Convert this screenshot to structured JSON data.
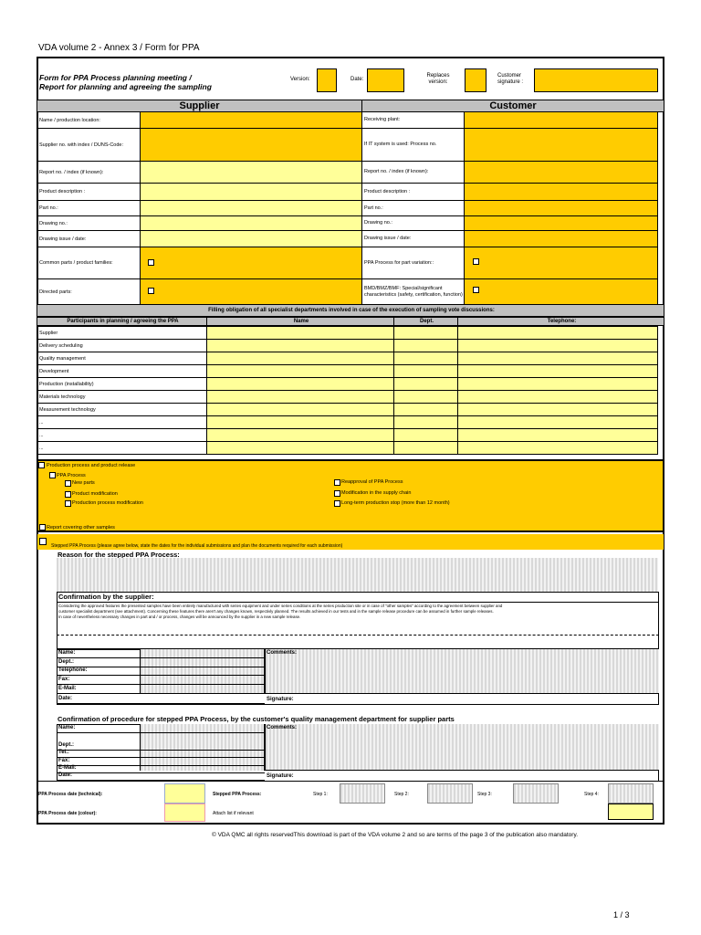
{
  "doc_title": "VDA volume 2 - Annex 3 / Form for PPA",
  "header": {
    "title_line1": "Form for PPA Process planning meeting /",
    "title_line2": "Report for planning and agreeing the sampling",
    "version": "Version:",
    "date": "Date:",
    "replaces": "Replaces version:",
    "customer_signature": "Customer signature :"
  },
  "supplier_heading": "Supplier",
  "customer_heading": "Customer",
  "supplier_fields": [
    "Name / production location:",
    "Supplier no. with index / DUNS-Code:",
    "Report no. / index (if known):",
    "Product description :",
    "Part no.:",
    "Drawing no.:",
    "Drawing issue / date:",
    "Common parts / product families:",
    "Directed parts:"
  ],
  "customer_fields": [
    "Receiving plant:",
    "If IT system is used: Process no.",
    "Report no. / index (if known):",
    "Product description :",
    "Part no.:",
    "Drawing no.:",
    "Drawing issue / date:",
    "PPA Process for part variation::",
    "BMD/BMZ/BMF: Special/significant characteristics (safety, certification, function)"
  ],
  "obligation_heading": "Filling obligation of all specialist departments involved in case of the execution of sampling vote discussions:",
  "participants_headers": [
    "Participants in planning / agreeing the PPA",
    "Name",
    "Dept.",
    "Telephone:"
  ],
  "participants": [
    "Supplier",
    "Delivery scheduling",
    "Quality management",
    "Development",
    "Production (installability)",
    "Materials technology",
    "Measurement technology",
    "...",
    "...",
    "..."
  ],
  "release": {
    "main": "Production process and product release",
    "ppa": "PPA Process",
    "new_parts": "New parts",
    "product_mod": "Product modification",
    "process_mod": "Production process modification",
    "reapproval": "Reapproval of PPA Process",
    "supply_chain": "Modification in the supply chain",
    "stop": "Long-term production stop (more than 12 month)",
    "other": "Report covering other samples"
  },
  "stepped": {
    "label": "Stepped PPA Process (please agree below, state the dates for the individual submissions and plan the documents required for each submission)",
    "reason": "Reason for the stepped PPA Process:"
  },
  "confirmation": {
    "title": "Confirmation by the supplier:",
    "text1": "Considering the approved features the presented samples have been entirely manufactured  with series equipment  and under series conditions at the series production site or in case of \"other samples\" according to the agreement between supplier and",
    "text2": "customer specialist department (see attachment). Concerning these features there aren't any changes known, respectivly planned. The results achieved in our tests and in the sample release procedure can be assumed in further sample releases.",
    "text3": "In case of nevertheless necessary changes in part and / or process, changes will be announced by the supplier in a new sample release.",
    "labels": [
      "Name:",
      "Dept.:",
      "Telephone:",
      "Fax:",
      "E-Mail:",
      "Date:"
    ],
    "comments": "Comments:",
    "signature": "Signature:"
  },
  "procedure": {
    "title": "Confirmation of procedure for stepped PPA Process, by the customer's quality management department for supplier parts",
    "labels": [
      "Name:",
      "Dept.:",
      "Tel.:",
      "Fax:",
      "E-Mail:",
      "Date:"
    ],
    "comments": "Comments:",
    "signature": "Signature:"
  },
  "bottom": {
    "tech": "PPA Process date (technical):",
    "colour": "PPA Process date (colour):",
    "stepped": "Stepped PPA Process:",
    "steps": [
      "Step 1:",
      "Step 2:",
      "Step 3:",
      "Step 4:"
    ],
    "attach": "Attach list if relevant"
  },
  "footer": "© VDA QMC all rights reservedThis download is part of the VDA volume 2 and so are terms of the page 3 of the publication also mandatory.",
  "page_number": "1 / 3",
  "colors": {
    "dark_yellow": "#ffcc00",
    "light_yellow": "#ffff99",
    "gray": "#c0c0c0"
  }
}
